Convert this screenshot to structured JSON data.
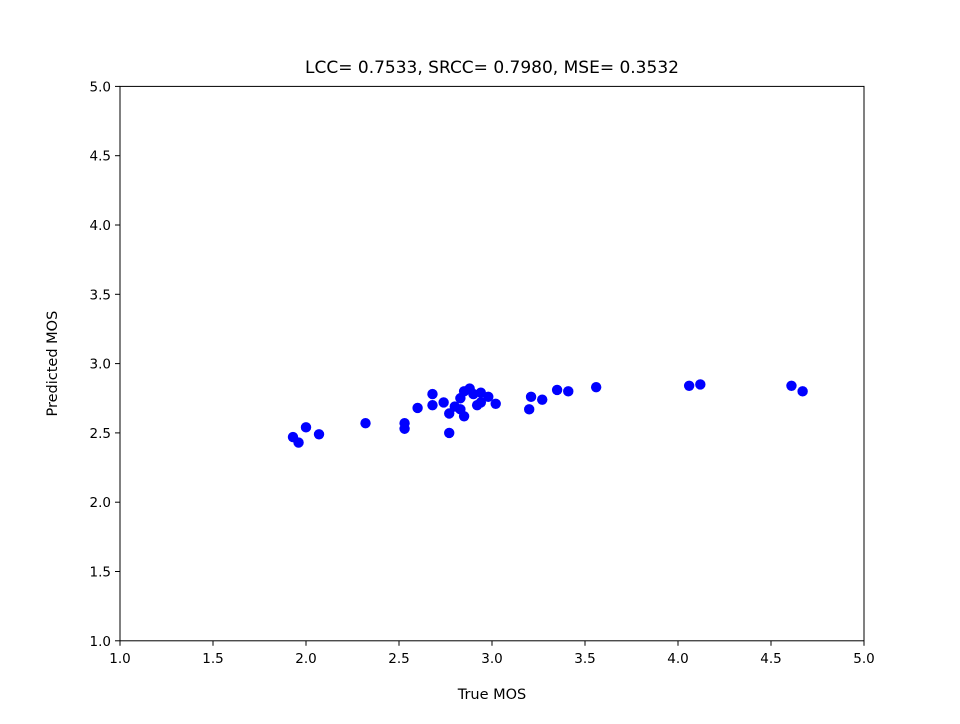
{
  "chart_data": {
    "type": "scatter",
    "title": "LCC= 0.7533, SRCC= 0.7980, MSE= 0.3532",
    "xlabel": "True MOS",
    "ylabel": "Predicted MOS",
    "xlim": [
      1.0,
      5.0
    ],
    "ylim": [
      1.0,
      5.0
    ],
    "xticks": [
      "1.0",
      "1.5",
      "2.0",
      "2.5",
      "3.0",
      "3.5",
      "4.0",
      "4.5",
      "5.0"
    ],
    "yticks": [
      "1.0",
      "1.5",
      "2.0",
      "2.5",
      "3.0",
      "3.5",
      "4.0",
      "4.5",
      "5.0"
    ],
    "grid": false,
    "marker_color": "#0000ff",
    "points": [
      [
        1.93,
        2.47
      ],
      [
        1.96,
        2.43
      ],
      [
        2.0,
        2.54
      ],
      [
        2.07,
        2.49
      ],
      [
        2.32,
        2.57
      ],
      [
        2.53,
        2.53
      ],
      [
        2.53,
        2.57
      ],
      [
        2.6,
        2.68
      ],
      [
        2.68,
        2.7
      ],
      [
        2.68,
        2.78
      ],
      [
        2.74,
        2.72
      ],
      [
        2.77,
        2.5
      ],
      [
        2.77,
        2.64
      ],
      [
        2.8,
        2.69
      ],
      [
        2.83,
        2.75
      ],
      [
        2.83,
        2.67
      ],
      [
        2.85,
        2.8
      ],
      [
        2.85,
        2.62
      ],
      [
        2.88,
        2.82
      ],
      [
        2.9,
        2.78
      ],
      [
        2.92,
        2.7
      ],
      [
        2.94,
        2.72
      ],
      [
        2.94,
        2.79
      ],
      [
        2.98,
        2.76
      ],
      [
        3.02,
        2.71
      ],
      [
        3.2,
        2.67
      ],
      [
        3.21,
        2.76
      ],
      [
        3.27,
        2.74
      ],
      [
        3.35,
        2.81
      ],
      [
        3.41,
        2.8
      ],
      [
        3.56,
        2.83
      ],
      [
        4.06,
        2.84
      ],
      [
        4.12,
        2.85
      ],
      [
        4.61,
        2.84
      ],
      [
        4.67,
        2.8
      ]
    ]
  }
}
